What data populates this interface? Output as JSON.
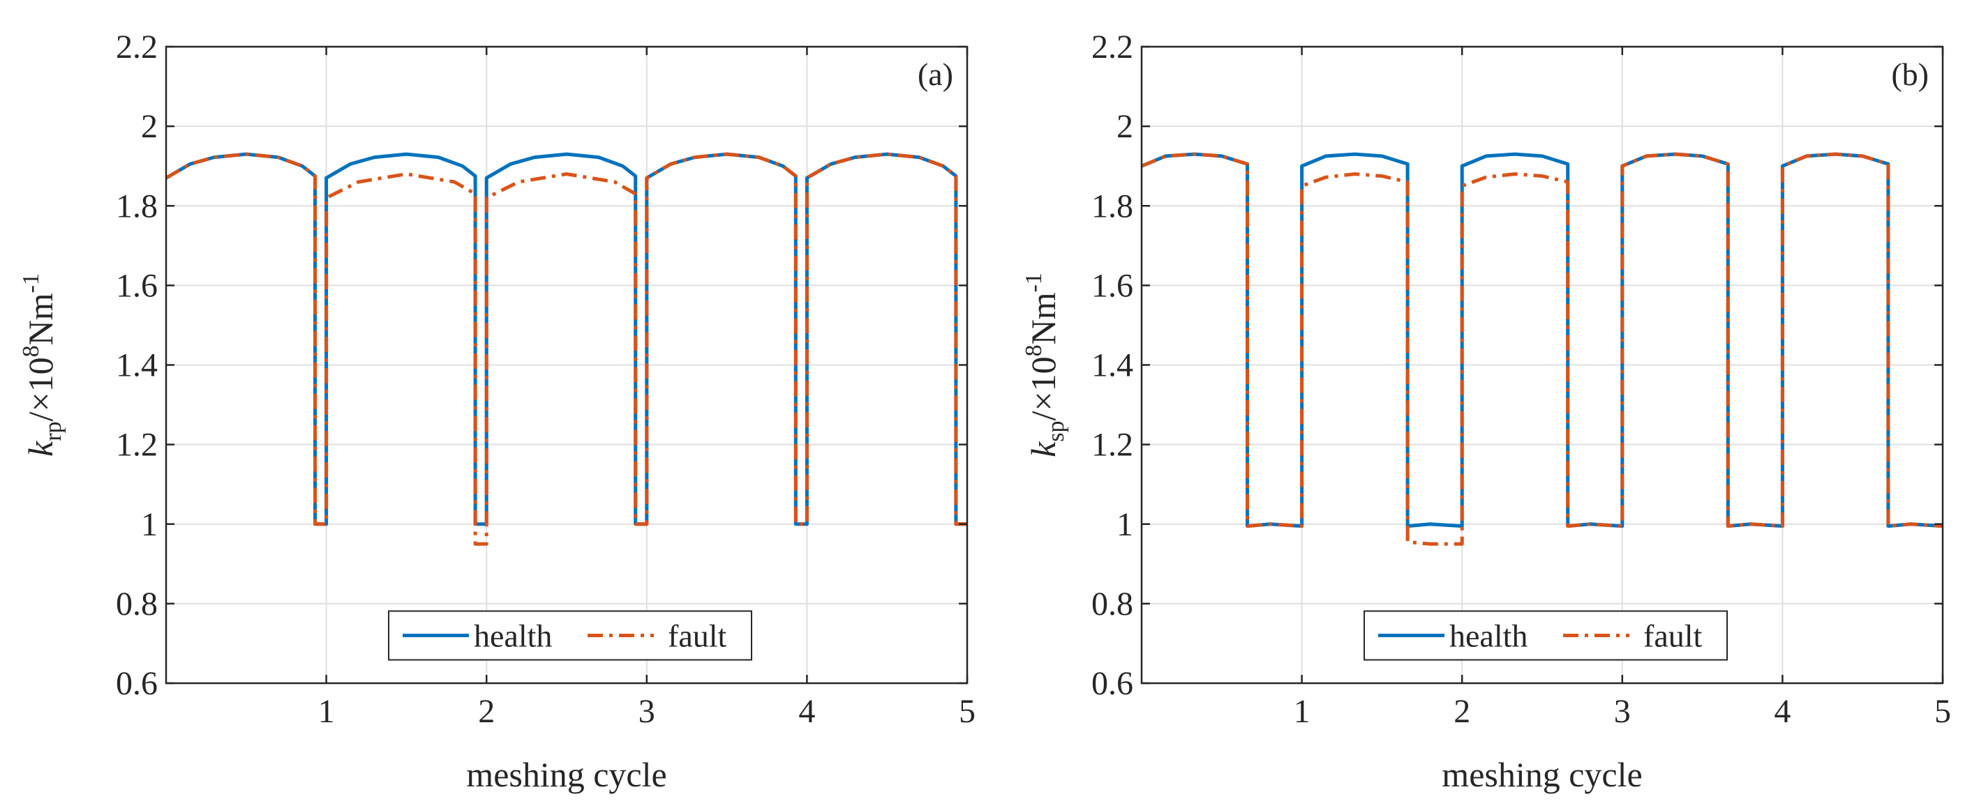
{
  "colors": {
    "health": "#0072BD",
    "fault": "#D95319",
    "grid": "#dfdfdf",
    "axis": "#262626"
  },
  "chart_data": [
    {
      "type": "line",
      "panel": "(a)",
      "xlabel": "meshing cycle",
      "ylabel": {
        "var": "k",
        "sub": "rp",
        "units": "/×10",
        "exp": "8",
        "unit2": "Nm",
        "exp2": "-1"
      },
      "xlim": [
        0,
        5
      ],
      "ylim": [
        0.6,
        2.2
      ],
      "xticks": [
        1,
        2,
        3,
        4,
        5
      ],
      "yticks": [
        0.6,
        0.8,
        1,
        1.2,
        1.4,
        1.6,
        1.8,
        2,
        2.2
      ],
      "grid": true,
      "legend": {
        "position": "bottom-center",
        "entries": [
          "health",
          "fault"
        ]
      },
      "series": [
        {
          "name": "health",
          "style": "solid",
          "x": [
            0,
            0.15,
            0.3,
            0.5,
            0.7,
            0.85,
            0.93,
            0.93,
            1.0,
            1.0,
            1.15,
            1.3,
            1.5,
            1.7,
            1.85,
            1.93,
            1.93,
            2.0,
            2.0,
            2.15,
            2.3,
            2.5,
            2.7,
            2.85,
            2.93,
            2.93,
            3.0,
            3.0,
            3.15,
            3.3,
            3.5,
            3.7,
            3.85,
            3.93,
            3.93,
            4.0,
            4.0,
            4.15,
            4.3,
            4.5,
            4.7,
            4.85,
            4.93,
            4.93,
            5.0
          ],
          "y": [
            1.87,
            1.905,
            1.922,
            1.93,
            1.922,
            1.9,
            1.875,
            1.0,
            1.0,
            1.87,
            1.905,
            1.922,
            1.93,
            1.922,
            1.9,
            1.875,
            1.0,
            1.0,
            1.87,
            1.905,
            1.922,
            1.93,
            1.922,
            1.9,
            1.875,
            1.0,
            1.0,
            1.87,
            1.905,
            1.922,
            1.93,
            1.922,
            1.9,
            1.875,
            1.0,
            1.0,
            1.87,
            1.905,
            1.922,
            1.93,
            1.922,
            1.9,
            1.875,
            1.0,
            1.0
          ]
        },
        {
          "name": "fault",
          "style": "dashdot",
          "x": [
            0,
            0.15,
            0.3,
            0.5,
            0.7,
            0.85,
            0.93,
            0.93,
            1.0,
            1.0,
            1.2,
            1.5,
            1.8,
            1.93,
            1.93,
            2.0,
            2.0,
            2.2,
            2.5,
            2.8,
            2.93,
            2.93,
            3.0,
            3.0,
            3.15,
            3.3,
            3.5,
            3.7,
            3.85,
            3.93,
            3.93,
            4.0,
            4.0,
            4.15,
            4.3,
            4.5,
            4.7,
            4.85,
            4.93,
            4.93,
            5.0
          ],
          "y": [
            1.87,
            1.905,
            1.922,
            1.93,
            1.922,
            1.9,
            1.875,
            1.0,
            1.0,
            1.82,
            1.86,
            1.88,
            1.86,
            1.83,
            0.95,
            0.95,
            1.82,
            1.86,
            1.88,
            1.86,
            1.83,
            1.0,
            1.0,
            1.87,
            1.905,
            1.922,
            1.93,
            1.922,
            1.9,
            1.875,
            1.0,
            1.0,
            1.87,
            1.905,
            1.922,
            1.93,
            1.922,
            1.9,
            1.875,
            1.0,
            1.0
          ]
        }
      ]
    },
    {
      "type": "line",
      "panel": "(b)",
      "xlabel": "meshing cycle",
      "ylabel": {
        "var": "k",
        "sub": "sp",
        "units": "/×10",
        "exp": "8",
        "unit2": "Nm",
        "exp2": "-1"
      },
      "xlim": [
        0,
        5
      ],
      "ylim": [
        0.6,
        2.2
      ],
      "xticks": [
        1,
        2,
        3,
        4,
        5
      ],
      "yticks": [
        0.6,
        0.8,
        1,
        1.2,
        1.4,
        1.6,
        1.8,
        2,
        2.2
      ],
      "grid": true,
      "legend": {
        "position": "bottom-center",
        "entries": [
          "health",
          "fault"
        ]
      },
      "series": [
        {
          "name": "health",
          "style": "solid",
          "x": [
            0,
            0.15,
            0.33,
            0.5,
            0.66,
            0.66,
            0.8,
            1.0,
            1.0,
            1.15,
            1.33,
            1.5,
            1.66,
            1.66,
            1.8,
            2.0,
            2.0,
            2.15,
            2.33,
            2.5,
            2.66,
            2.66,
            2.8,
            3.0,
            3.0,
            3.15,
            3.33,
            3.5,
            3.66,
            3.66,
            3.8,
            4.0,
            4.0,
            4.15,
            4.33,
            4.5,
            4.66,
            4.66,
            4.8,
            5.0
          ],
          "y": [
            1.9,
            1.925,
            1.93,
            1.925,
            1.905,
            0.995,
            1.0,
            0.995,
            1.9,
            1.925,
            1.93,
            1.925,
            1.905,
            0.995,
            1.0,
            0.995,
            1.9,
            1.925,
            1.93,
            1.925,
            1.905,
            0.995,
            1.0,
            0.995,
            1.9,
            1.925,
            1.93,
            1.925,
            1.905,
            0.995,
            1.0,
            0.995,
            1.9,
            1.925,
            1.93,
            1.925,
            1.905,
            0.995,
            1.0,
            0.995
          ]
        },
        {
          "name": "fault",
          "style": "dashdot",
          "x": [
            0,
            0.15,
            0.33,
            0.5,
            0.66,
            0.66,
            0.8,
            1.0,
            1.0,
            1.15,
            1.33,
            1.5,
            1.66,
            1.66,
            1.8,
            2.0,
            2.0,
            2.15,
            2.33,
            2.5,
            2.66,
            2.66,
            2.8,
            3.0,
            3.0,
            3.15,
            3.33,
            3.5,
            3.66,
            3.66,
            3.8,
            4.0,
            4.0,
            4.15,
            4.33,
            4.5,
            4.66,
            4.66,
            4.8,
            5.0
          ],
          "y": [
            1.9,
            1.925,
            1.93,
            1.925,
            1.905,
            0.995,
            1.0,
            0.995,
            1.85,
            1.872,
            1.88,
            1.875,
            1.86,
            0.955,
            0.95,
            0.95,
            1.85,
            1.872,
            1.88,
            1.875,
            1.86,
            0.995,
            1.0,
            0.995,
            1.9,
            1.925,
            1.93,
            1.925,
            1.905,
            0.995,
            1.0,
            0.995,
            1.9,
            1.925,
            1.93,
            1.925,
            1.905,
            0.995,
            1.0,
            0.995
          ]
        }
      ]
    }
  ]
}
